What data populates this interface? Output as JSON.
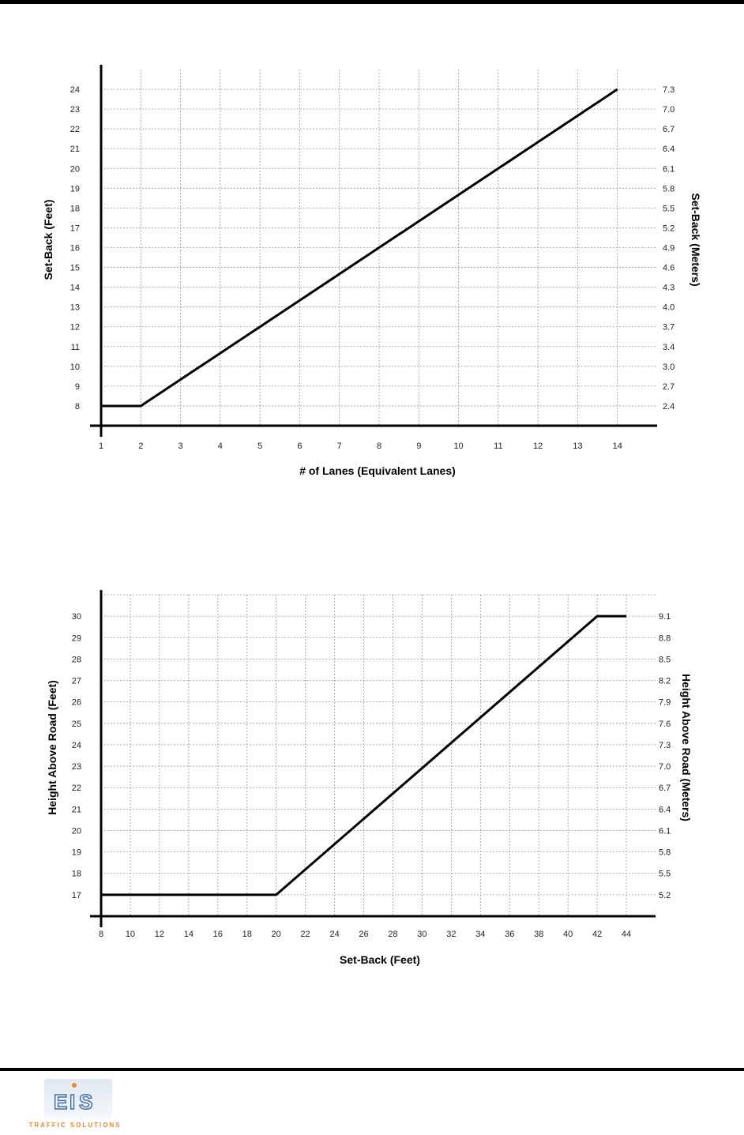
{
  "chart_data": [
    {
      "type": "line",
      "xlabel": "# of Lanes (Equivalent Lanes)",
      "ylabel": "Set-Back (Feet)",
      "ylabel_right": "Set-Back (Meters)",
      "x_ticks": [
        "1",
        "2",
        "3",
        "4",
        "5",
        "6",
        "7",
        "8",
        "9",
        "10",
        "11",
        "12",
        "13",
        "14"
      ],
      "y_ticks": [
        "8",
        "9",
        "10",
        "11",
        "12",
        "13",
        "14",
        "15",
        "16",
        "17",
        "18",
        "19",
        "20",
        "21",
        "22",
        "23",
        "24"
      ],
      "y_ticks_right": [
        "2.4",
        "2.7",
        "3.0",
        "3.4",
        "3.7",
        "4.0",
        "4.3",
        "4.6",
        "4.9",
        "5.2",
        "5.5",
        "5.8",
        "6.1",
        "6.4",
        "6.7",
        "7.0",
        "7.3"
      ],
      "xlim": [
        1,
        15
      ],
      "ylim": [
        7,
        25
      ],
      "grid": true,
      "series": [
        {
          "x": [
            1,
            2,
            14
          ],
          "y": [
            8,
            8,
            24
          ]
        }
      ]
    },
    {
      "type": "line",
      "xlabel": "Set-Back (Feet)",
      "ylabel": "Height Above Road (Feet)",
      "ylabel_right": "Height Above Road (Meters)",
      "x_ticks": [
        "8",
        "10",
        "12",
        "14",
        "16",
        "18",
        "20",
        "22",
        "24",
        "26",
        "28",
        "30",
        "32",
        "34",
        "36",
        "38",
        "40",
        "42",
        "44"
      ],
      "y_ticks": [
        "17",
        "18",
        "19",
        "20",
        "21",
        "22",
        "23",
        "24",
        "25",
        "26",
        "27",
        "28",
        "29",
        "30"
      ],
      "y_ticks_right": [
        "5.2",
        "5.5",
        "5.8",
        "6.1",
        "6.4",
        "6.7",
        "7.0",
        "7.3",
        "7.6",
        "7.9",
        "8.2",
        "8.5",
        "8.8",
        "9.1"
      ],
      "xlim": [
        8,
        46
      ],
      "ylim": [
        16,
        31
      ],
      "grid": true,
      "series": [
        {
          "x": [
            8,
            20,
            42,
            44
          ],
          "y": [
            17,
            17,
            30,
            30
          ]
        }
      ]
    }
  ],
  "logo": {
    "letters": "EIS",
    "subtitle": "TRAFFIC SOLUTIONS"
  }
}
